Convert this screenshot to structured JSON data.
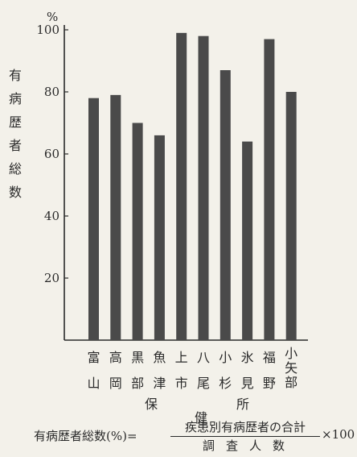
{
  "chart_data": {
    "type": "bar",
    "unit_label": "%",
    "ylabel": "有病歴者総数",
    "ylim": [
      0,
      100
    ],
    "yticks": [
      20,
      40,
      60,
      80,
      100
    ],
    "categories": [
      [
        "富",
        "山"
      ],
      [
        "高",
        "岡"
      ],
      [
        "黒",
        "部"
      ],
      [
        "魚",
        "津"
      ],
      [
        "上",
        "市"
      ],
      [
        "八",
        "尾"
      ],
      [
        "小",
        "杉"
      ],
      [
        "氷",
        "見"
      ],
      [
        "福",
        "野"
      ],
      [
        "小",
        "矢",
        "部"
      ]
    ],
    "values": [
      78,
      79,
      70,
      66,
      99,
      98,
      87,
      64,
      97,
      80
    ],
    "sub_labels": [
      "保",
      "健",
      "所"
    ],
    "bar_color": "#4a4a4a",
    "grid": false
  },
  "formula": {
    "lhs": "有病歴者総数(%)=",
    "numerator": "疾患別有病歴者の合計",
    "denominator": "調査人数",
    "multiplier": "×100"
  }
}
